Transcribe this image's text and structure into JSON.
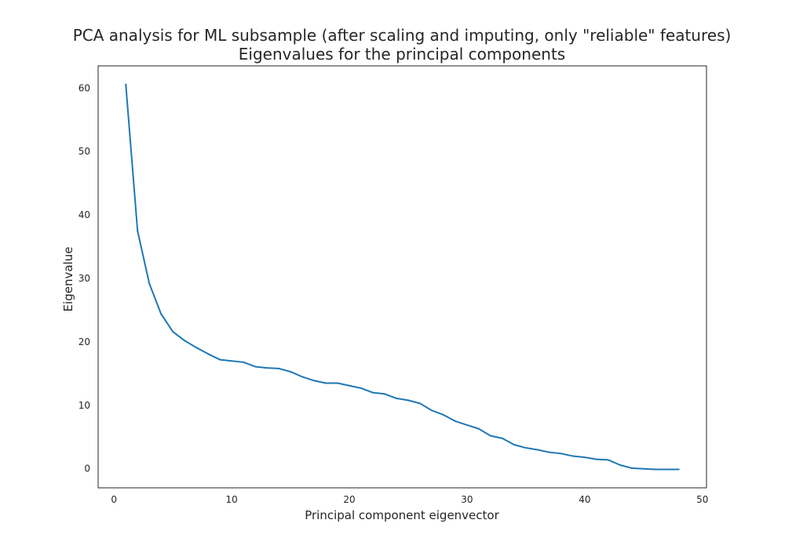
{
  "chart_data": {
    "type": "line",
    "title": "PCA analysis for ML subsample (after scaling and imputing, only \"reliable\" features)",
    "subtitle": "Eigenvalues for the principal components",
    "xlabel": "Principal component eigenvector",
    "ylabel": "Eigenvalue",
    "xlim": [
      -1.35,
      50.35
    ],
    "ylim": [
      -3.0,
      63.5
    ],
    "xticks": [
      0,
      10,
      20,
      30,
      40,
      50
    ],
    "yticks": [
      0,
      10,
      20,
      30,
      40,
      50,
      60
    ],
    "grid": false,
    "legend": "none",
    "color": "#1f77b4",
    "series": [
      {
        "x": [
          1,
          2,
          3,
          4,
          5,
          6,
          7,
          8,
          9,
          10,
          11,
          12,
          13,
          14,
          15,
          16,
          17,
          18,
          19,
          20,
          21,
          22,
          23,
          24,
          25,
          26,
          27,
          28,
          29,
          30,
          31,
          32,
          33,
          34,
          35,
          36,
          37,
          38,
          39,
          40,
          41,
          42,
          43,
          44,
          45,
          46,
          47,
          48
        ],
        "values": [
          60.6,
          37.5,
          29.2,
          24.4,
          21.6,
          20.2,
          19.1,
          18.1,
          17.2,
          17.0,
          16.8,
          16.1,
          15.9,
          15.8,
          15.3,
          14.5,
          13.9,
          13.5,
          13.5,
          13.1,
          12.7,
          12.0,
          11.8,
          11.1,
          10.8,
          10.3,
          9.2,
          8.5,
          7.5,
          6.9,
          6.3,
          5.2,
          4.8,
          3.8,
          3.3,
          3.0,
          2.6,
          2.4,
          2.0,
          1.8,
          1.5,
          1.4,
          0.6,
          0.1,
          0.0,
          -0.1,
          -0.1,
          -0.1
        ]
      }
    ]
  }
}
